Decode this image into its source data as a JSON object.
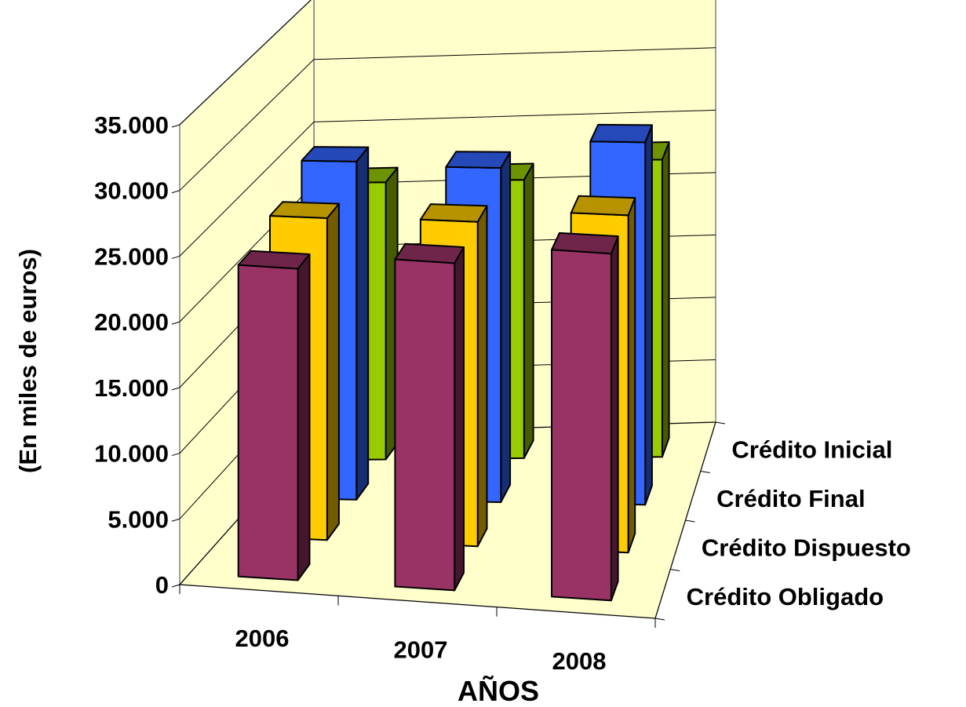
{
  "chart_data": {
    "type": "bar",
    "subtype": "3d-grouped-column",
    "title": "",
    "xlabel": "AÑOS",
    "ylabel": "(En miles de euros)",
    "ylim": [
      0,
      35000
    ],
    "y_ticks": [
      0,
      5000,
      10000,
      15000,
      20000,
      25000,
      30000,
      35000
    ],
    "y_tick_labels": [
      "0",
      "5.000",
      "10.000",
      "15.000",
      "20.000",
      "25.000",
      "30.000",
      "35.000"
    ],
    "categories": [
      "2006",
      "2007",
      "2008"
    ],
    "series": [
      {
        "name": "Crédito Obligado",
        "values": [
          23800,
          25000,
          26500
        ]
      },
      {
        "name": "Crédito Dispuesto",
        "values": [
          24900,
          25100,
          26100
        ]
      },
      {
        "name": "Crédito Final",
        "values": [
          26500,
          26200,
          28400
        ]
      },
      {
        "name": "Crédito Inicial",
        "values": [
          22000,
          22100,
          23600
        ]
      }
    ],
    "grid": true,
    "colors": {
      "Crédito Obligado": "#993366",
      "Crédito Dispuesto": "#ffcc00",
      "Crédito Final": "#3366ff",
      "Crédito Inicial": "#99cc00",
      "walls": "#ffffcc"
    }
  }
}
